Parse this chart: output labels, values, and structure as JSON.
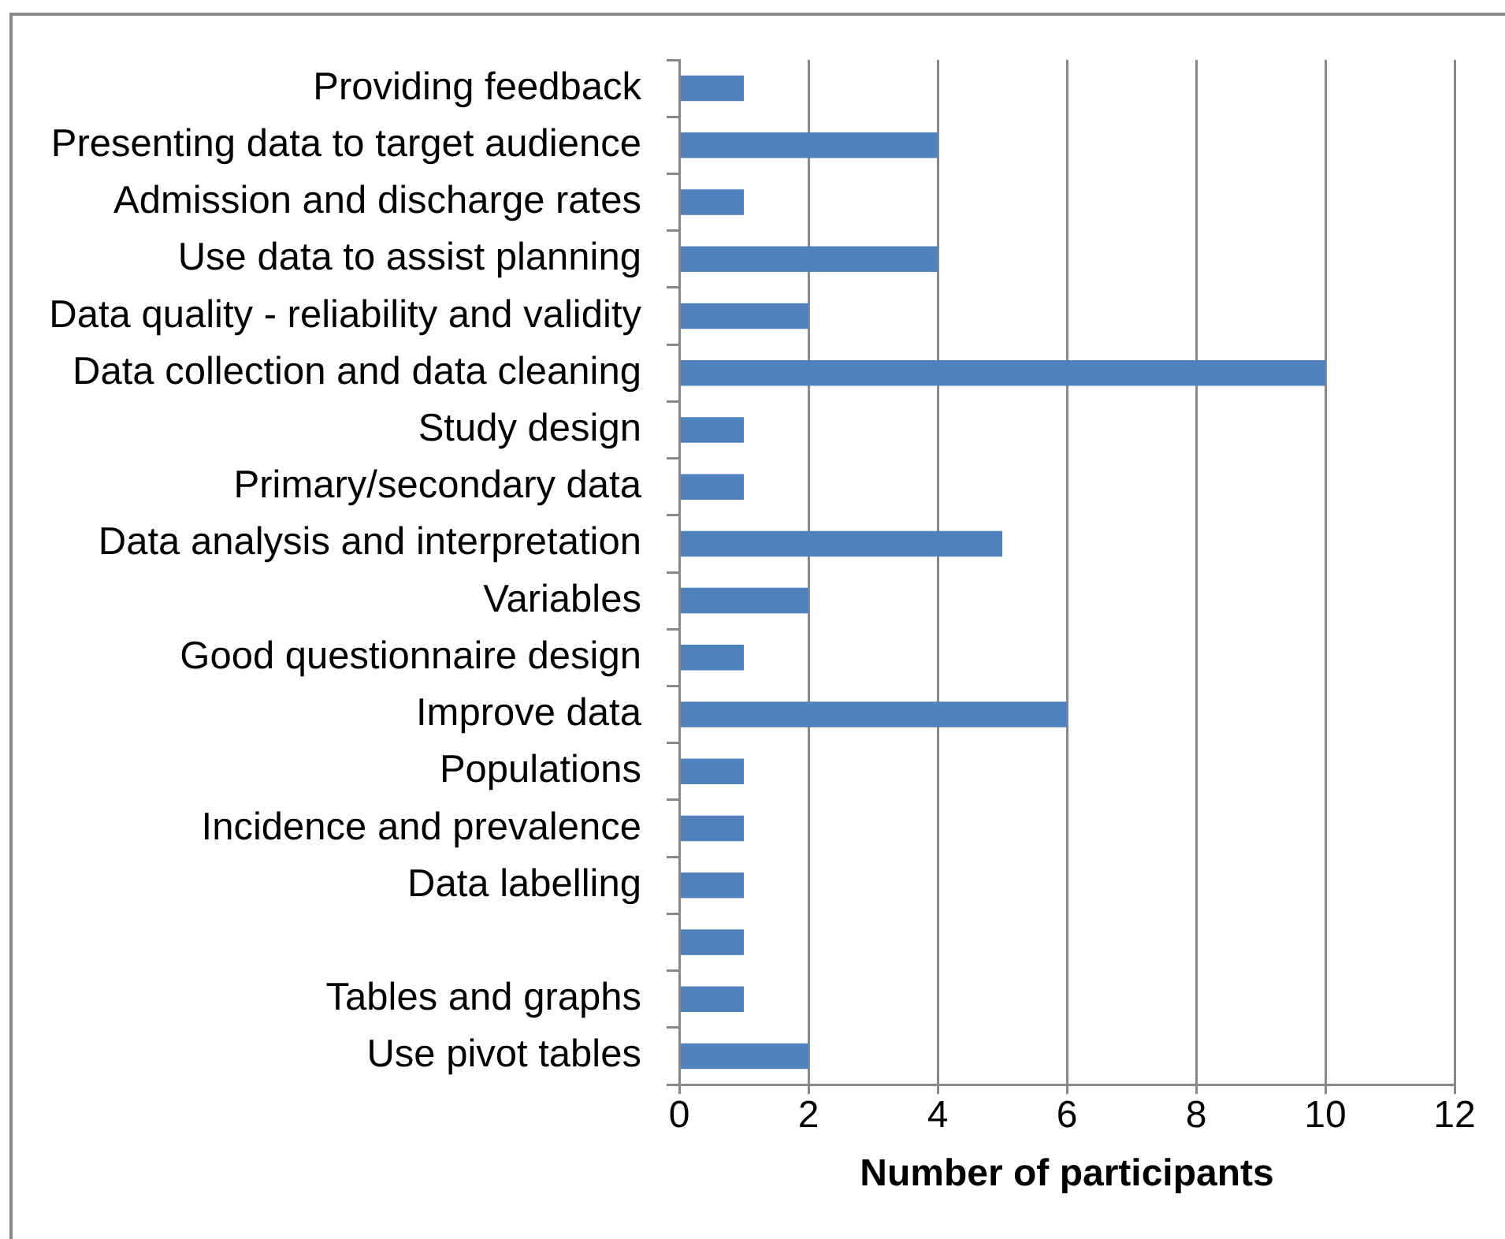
{
  "chart_data": {
    "type": "bar",
    "orientation": "horizontal",
    "categories": [
      "Providing feedback",
      "Presenting data to target audience",
      "Admission and discharge rates",
      "Use data to assist planning",
      "Data quality - reliability and validity",
      "Data collection and data cleaning",
      "Study design",
      "Primary/secondary data",
      "Data analysis and interpretation",
      "Variables",
      "Good questionnaire design",
      "Improve data",
      "Populations",
      "Incidence and prevalence",
      "Data labelling",
      null,
      "Tables and graphs",
      "Use pivot tables"
    ],
    "values": [
      1,
      4,
      1,
      4,
      2,
      10,
      1,
      1,
      5,
      2,
      1,
      6,
      1,
      1,
      1,
      1,
      1,
      2
    ],
    "color": "#4f81bd",
    "xlim": [
      0,
      12
    ],
    "xticks": [
      0,
      2,
      4,
      6,
      8,
      10,
      12
    ],
    "xlabel": "Number of participants",
    "grid": "x"
  }
}
